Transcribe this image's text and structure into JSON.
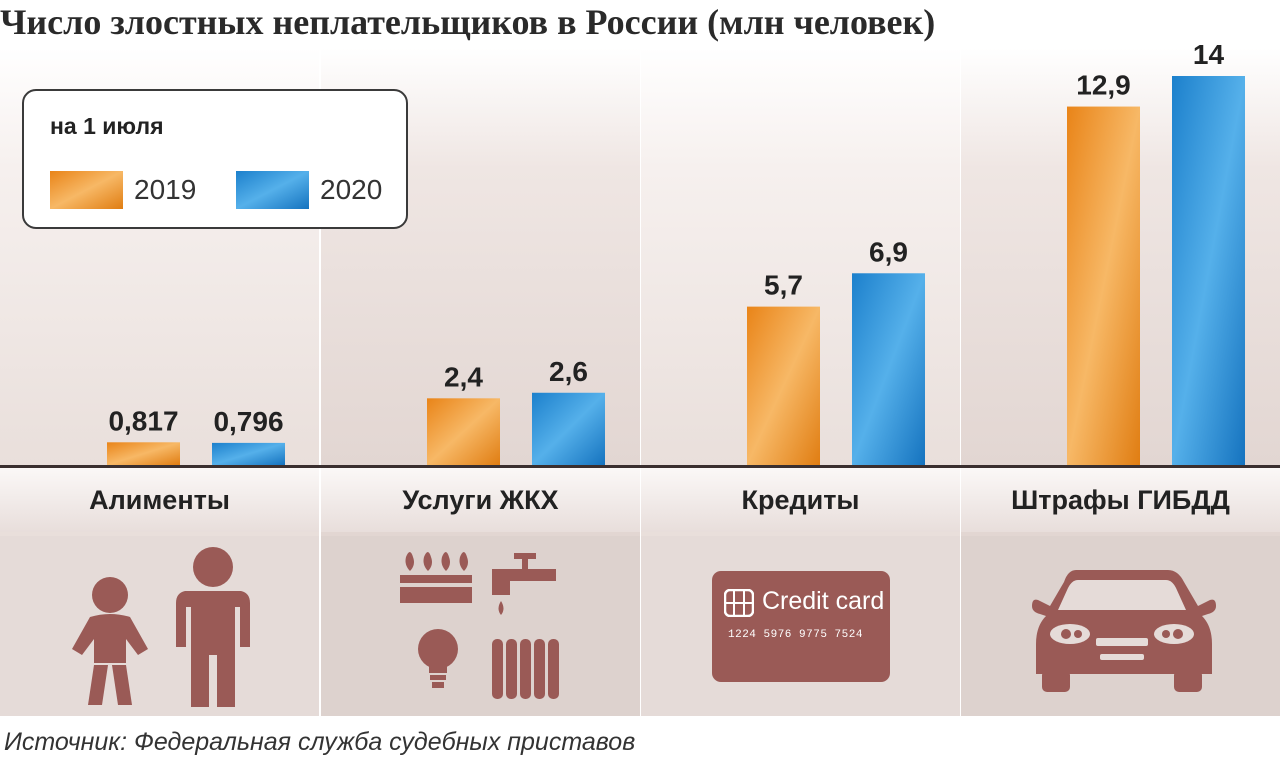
{
  "title": "Число злостных неплательщиков в России (млн человек)",
  "legend": {
    "title": "на 1 июля",
    "items": [
      {
        "label": "2019",
        "color": "#f0962c"
      },
      {
        "label": "2020",
        "color": "#1f8ed4"
      }
    ]
  },
  "source": "Источник: Федеральная служба судебных приставов",
  "icons": {
    "credit_card_text": "Credit card",
    "credit_card_number": "1224 5976 9775 7524"
  },
  "chart_data": {
    "type": "bar",
    "categories": [
      "Алименты",
      "Услуги ЖКХ",
      "Кредиты",
      "Штрафы ГИБДД"
    ],
    "series": [
      {
        "name": "2019",
        "color": "#f0962c",
        "values": [
          0.817,
          2.4,
          5.7,
          12.9
        ],
        "labels": [
          "0,817",
          "2,4",
          "5,7",
          "12,9"
        ]
      },
      {
        "name": "2020",
        "color": "#1f8ed4",
        "values": [
          0.796,
          2.6,
          6.9,
          14
        ],
        "labels": [
          "0,796",
          "2,6",
          "6,9",
          "14"
        ]
      }
    ],
    "ylim": [
      0,
      14
    ]
  }
}
